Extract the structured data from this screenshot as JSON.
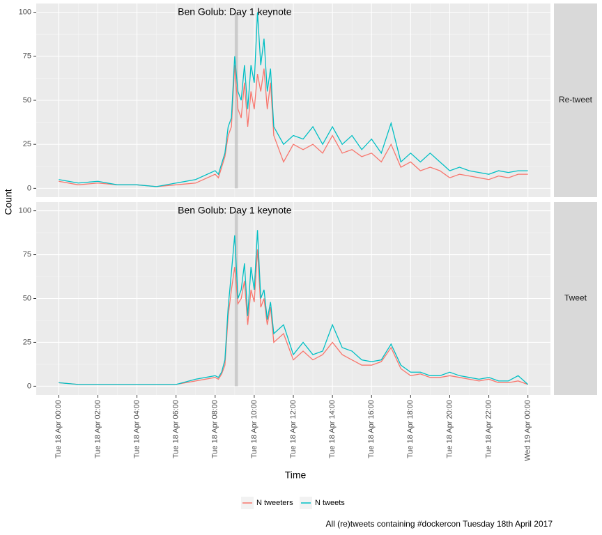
{
  "chart_data": {
    "type": "line",
    "x_label": "Time",
    "y_label": "Count",
    "caption": "All (re)tweets containing #dockercon Tuesday 18th April 2017",
    "x": [
      "Tue 18 Apr 00:00",
      "Tue 18 Apr 01:00",
      "Tue 18 Apr 02:00",
      "Tue 18 Apr 03:00",
      "Tue 18 Apr 04:00",
      "Tue 18 Apr 05:00",
      "Tue 18 Apr 06:00",
      "Tue 18 Apr 07:00",
      "Tue 18 Apr 08:00",
      "Tue 18 Apr 08:10",
      "Tue 18 Apr 08:20",
      "Tue 18 Apr 08:30",
      "Tue 18 Apr 08:40",
      "Tue 18 Apr 08:50",
      "Tue 18 Apr 09:00",
      "Tue 18 Apr 09:10",
      "Tue 18 Apr 09:20",
      "Tue 18 Apr 09:30",
      "Tue 18 Apr 09:40",
      "Tue 18 Apr 09:50",
      "Tue 18 Apr 10:00",
      "Tue 18 Apr 10:10",
      "Tue 18 Apr 10:20",
      "Tue 18 Apr 10:30",
      "Tue 18 Apr 10:40",
      "Tue 18 Apr 10:50",
      "Tue 18 Apr 11:00",
      "Tue 18 Apr 11:30",
      "Tue 18 Apr 12:00",
      "Tue 18 Apr 12:30",
      "Tue 18 Apr 13:00",
      "Tue 18 Apr 13:30",
      "Tue 18 Apr 14:00",
      "Tue 18 Apr 14:30",
      "Tue 18 Apr 15:00",
      "Tue 18 Apr 15:30",
      "Tue 18 Apr 16:00",
      "Tue 18 Apr 16:30",
      "Tue 18 Apr 17:00",
      "Tue 18 Apr 17:30",
      "Tue 18 Apr 18:00",
      "Tue 18 Apr 18:30",
      "Tue 18 Apr 19:00",
      "Tue 18 Apr 19:30",
      "Tue 18 Apr 20:00",
      "Tue 18 Apr 20:30",
      "Tue 18 Apr 21:00",
      "Tue 18 Apr 21:30",
      "Tue 18 Apr 22:00",
      "Tue 18 Apr 22:30",
      "Tue 18 Apr 23:00",
      "Tue 18 Apr 23:30",
      "Wed 19 Apr 00:00"
    ],
    "xlim": [
      "Tue 18 Apr 00:00",
      "Wed 19 Apr 00:00"
    ],
    "xticks": [
      "Tue 18 Apr 00:00",
      "Tue 18 Apr 02:00",
      "Tue 18 Apr 04:00",
      "Tue 18 Apr 06:00",
      "Tue 18 Apr 08:00",
      "Tue 18 Apr 10:00",
      "Tue 18 Apr 12:00",
      "Tue 18 Apr 14:00",
      "Tue 18 Apr 16:00",
      "Tue 18 Apr 18:00",
      "Tue 18 Apr 20:00",
      "Tue 18 Apr 22:00",
      "Wed 19 Apr 00:00"
    ],
    "ylim": [
      -5,
      105
    ],
    "yticks": [
      0,
      25,
      50,
      75,
      100
    ],
    "grid": true,
    "annotation": {
      "label": "Ben Golub: Day 1 keynote",
      "x": [
        "Tue 18 Apr 09:00",
        "Tue 18 Apr 09:10"
      ],
      "y": [
        0,
        100
      ]
    },
    "panels": [
      {
        "strip": "Re-tweet",
        "series": [
          {
            "name": "N tweeters",
            "color": "#f8766d",
            "values": [
              4,
              2,
              3,
              2,
              2,
              1,
              2,
              3,
              8,
              6,
              12,
              18,
              30,
              35,
              70,
              45,
              40,
              60,
              35,
              55,
              45,
              65,
              55,
              68,
              45,
              60,
              30,
              15,
              25,
              22,
              25,
              20,
              30,
              20,
              22,
              18,
              20,
              15,
              25,
              12,
              15,
              10,
              12,
              10,
              6,
              8,
              7,
              6,
              5,
              7,
              6,
              8,
              8
            ]
          },
          {
            "name": "N tweets",
            "color": "#00bfc4",
            "values": [
              5,
              3,
              4,
              2,
              2,
              1,
              3,
              5,
              10,
              8,
              14,
              20,
              35,
              40,
              75,
              55,
              50,
              70,
              45,
              70,
              60,
              100,
              70,
              85,
              55,
              68,
              35,
              25,
              30,
              28,
              35,
              25,
              35,
              25,
              30,
              22,
              28,
              20,
              37,
              15,
              20,
              15,
              20,
              15,
              10,
              12,
              10,
              9,
              8,
              10,
              9,
              10,
              10
            ]
          }
        ]
      },
      {
        "strip": "Tweet",
        "series": [
          {
            "name": "N tweeters",
            "color": "#f8766d",
            "values": [
              2,
              1,
              1,
              1,
              1,
              1,
              1,
              3,
              5,
              4,
              7,
              12,
              40,
              55,
              68,
              47,
              50,
              60,
              35,
              55,
              48,
              78,
              45,
              50,
              35,
              45,
              25,
              30,
              15,
              20,
              15,
              18,
              25,
              18,
              15,
              12,
              12,
              14,
              22,
              10,
              6,
              7,
              5,
              5,
              6,
              5,
              4,
              3,
              4,
              2,
              2,
              3,
              1
            ]
          },
          {
            "name": "N tweets",
            "color": "#00bfc4",
            "values": [
              2,
              1,
              1,
              1,
              1,
              1,
              1,
              4,
              6,
              5,
              8,
              15,
              45,
              65,
              86,
              50,
              55,
              70,
              40,
              68,
              55,
              89,
              50,
              55,
              38,
              48,
              30,
              35,
              18,
              25,
              18,
              20,
              35,
              22,
              20,
              15,
              14,
              15,
              24,
              12,
              8,
              8,
              6,
              6,
              8,
              6,
              5,
              4,
              5,
              3,
              3,
              6,
              1
            ]
          }
        ]
      }
    ]
  }
}
